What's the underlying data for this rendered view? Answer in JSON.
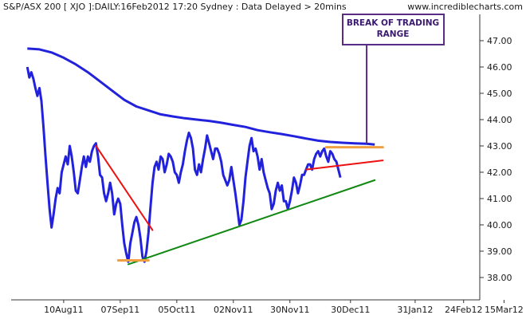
{
  "header": {
    "title": "S&P/ASX 200 [ XJO ]:DAILY:16Feb2012 17:20 Sydney : Data Delayed > 20mins",
    "url": "www.incrediblecharts.com"
  },
  "colors": {
    "price": "#2222dd",
    "ma": "#2222dd",
    "downtrend": "#ee1111",
    "uptrend": "#118811",
    "support": "#f0a040",
    "resistance_upper": "#f0a040",
    "resistance_line": "#ee1111",
    "note": "#5a2c86",
    "background": "#ffffff",
    "axis": "#333333"
  },
  "chart_data": {
    "type": "line",
    "title": "S&P/ASX 200 [ XJO ]:DAILY:16Feb2012 17:20 Sydney : Data Delayed > 20mins",
    "xlabel": "",
    "ylabel": "",
    "x_tick_labels": [
      "10Aug11",
      "07Sep11",
      "05Oct11",
      "02Nov11",
      "30Nov11",
      "30Dec11",
      "31Jan12",
      "24Feb12",
      "15Mar12"
    ],
    "y_tick_labels": [
      "38.00",
      "39.00",
      "40.00",
      "41.00",
      "42.00",
      "43.00",
      "44.00",
      "45.00",
      "46.00",
      "47.00"
    ],
    "ylim": [
      37.15,
      48.0
    ],
    "xlim": [
      0,
      232
    ],
    "grid": false,
    "y_axis": "right",
    "x_ticks": [
      {
        "label": "10Aug11",
        "x": 26
      },
      {
        "label": "07Sep11",
        "x": 54
      },
      {
        "label": "05Oct11",
        "x": 82
      },
      {
        "label": "02Nov11",
        "x": 110
      },
      {
        "label": "30Nov11",
        "x": 138
      },
      {
        "label": "30Dec11",
        "x": 168
      },
      {
        "label": "31Jan12",
        "x": 200
      },
      {
        "label": "24Feb12",
        "x": 224
      },
      {
        "label": "15Mar12",
        "x": 244
      }
    ],
    "y_ticks": [
      38,
      39,
      40,
      41,
      42,
      43,
      44,
      45,
      46,
      47
    ],
    "series": [
      {
        "kind": "price",
        "points": [
          [
            8,
            46.0
          ],
          [
            9,
            45.6
          ],
          [
            10,
            45.8
          ],
          [
            11,
            45.55
          ],
          [
            12,
            45.2
          ],
          [
            13,
            44.9
          ],
          [
            14,
            45.2
          ],
          [
            15,
            44.7
          ],
          [
            16,
            43.7
          ],
          [
            17,
            42.6
          ],
          [
            18,
            41.6
          ],
          [
            19,
            40.6
          ],
          [
            20,
            39.9
          ],
          [
            21,
            40.4
          ],
          [
            22,
            41.0
          ],
          [
            23,
            41.4
          ],
          [
            24,
            41.2
          ],
          [
            25,
            42.0
          ],
          [
            26,
            42.3
          ],
          [
            27,
            42.6
          ],
          [
            28,
            42.3
          ],
          [
            29,
            43.0
          ],
          [
            30,
            42.6
          ],
          [
            31,
            42.0
          ],
          [
            32,
            41.3
          ],
          [
            33,
            41.2
          ],
          [
            34,
            41.7
          ],
          [
            35,
            42.2
          ],
          [
            36,
            42.6
          ],
          [
            37,
            42.2
          ],
          [
            38,
            42.6
          ],
          [
            39,
            42.4
          ],
          [
            40,
            42.8
          ],
          [
            41,
            43.0
          ],
          [
            42,
            43.1
          ],
          [
            43,
            42.6
          ],
          [
            44,
            41.9
          ],
          [
            45,
            41.8
          ],
          [
            46,
            41.2
          ],
          [
            47,
            40.9
          ],
          [
            48,
            41.2
          ],
          [
            49,
            41.6
          ],
          [
            50,
            41.2
          ],
          [
            51,
            40.4
          ],
          [
            52,
            40.8
          ],
          [
            53,
            41.0
          ],
          [
            54,
            40.8
          ],
          [
            55,
            40.0
          ],
          [
            56,
            39.3
          ],
          [
            57,
            38.9
          ],
          [
            58,
            38.6
          ],
          [
            59,
            39.3
          ],
          [
            60,
            39.7
          ],
          [
            61,
            40.1
          ],
          [
            62,
            40.3
          ],
          [
            63,
            40.0
          ],
          [
            64,
            39.5
          ],
          [
            65,
            38.8
          ],
          [
            66,
            38.6
          ],
          [
            67,
            39.0
          ],
          [
            68,
            39.7
          ],
          [
            69,
            40.7
          ],
          [
            70,
            41.6
          ],
          [
            71,
            42.2
          ],
          [
            72,
            42.4
          ],
          [
            73,
            42.1
          ],
          [
            74,
            42.6
          ],
          [
            75,
            42.5
          ],
          [
            76,
            42.0
          ],
          [
            77,
            42.3
          ],
          [
            78,
            42.7
          ],
          [
            79,
            42.6
          ],
          [
            80,
            42.4
          ],
          [
            81,
            42.0
          ],
          [
            82,
            41.9
          ],
          [
            83,
            41.6
          ],
          [
            84,
            42.0
          ],
          [
            85,
            42.3
          ],
          [
            86,
            42.8
          ],
          [
            87,
            43.2
          ],
          [
            88,
            43.5
          ],
          [
            89,
            43.3
          ],
          [
            90,
            42.9
          ],
          [
            91,
            42.1
          ],
          [
            92,
            41.9
          ],
          [
            93,
            42.3
          ],
          [
            94,
            42.0
          ],
          [
            95,
            42.5
          ],
          [
            96,
            42.9
          ],
          [
            97,
            43.4
          ],
          [
            98,
            43.1
          ],
          [
            99,
            42.8
          ],
          [
            100,
            42.5
          ],
          [
            101,
            42.9
          ],
          [
            102,
            42.9
          ],
          [
            103,
            42.7
          ],
          [
            104,
            42.4
          ],
          [
            105,
            41.9
          ],
          [
            106,
            41.7
          ],
          [
            107,
            41.5
          ],
          [
            108,
            41.7
          ],
          [
            109,
            42.2
          ],
          [
            110,
            41.7
          ],
          [
            111,
            41.2
          ],
          [
            112,
            40.6
          ],
          [
            113,
            40.0
          ],
          [
            114,
            40.2
          ],
          [
            115,
            40.9
          ],
          [
            116,
            41.8
          ],
          [
            117,
            42.4
          ],
          [
            118,
            43.0
          ],
          [
            119,
            43.3
          ],
          [
            120,
            42.8
          ],
          [
            121,
            42.9
          ],
          [
            122,
            42.6
          ],
          [
            123,
            42.1
          ],
          [
            124,
            42.5
          ],
          [
            125,
            42.0
          ],
          [
            126,
            41.7
          ],
          [
            127,
            41.4
          ],
          [
            128,
            41.2
          ],
          [
            129,
            40.6
          ],
          [
            130,
            40.8
          ],
          [
            131,
            41.3
          ],
          [
            132,
            41.6
          ],
          [
            133,
            41.3
          ],
          [
            134,
            41.5
          ],
          [
            135,
            40.9
          ],
          [
            136,
            40.9
          ],
          [
            137,
            40.6
          ],
          [
            138,
            40.9
          ],
          [
            139,
            41.3
          ],
          [
            140,
            41.8
          ],
          [
            141,
            41.6
          ],
          [
            142,
            41.2
          ],
          [
            143,
            41.5
          ],
          [
            144,
            41.9
          ],
          [
            145,
            41.9
          ],
          [
            146,
            42.1
          ],
          [
            147,
            42.3
          ],
          [
            148,
            42.3
          ],
          [
            149,
            42.1
          ],
          [
            150,
            42.5
          ],
          [
            151,
            42.7
          ],
          [
            152,
            42.8
          ],
          [
            153,
            42.6
          ],
          [
            154,
            42.8
          ],
          [
            155,
            42.9
          ],
          [
            156,
            42.6
          ],
          [
            157,
            42.4
          ],
          [
            158,
            42.8
          ],
          [
            159,
            42.7
          ],
          [
            160,
            42.5
          ],
          [
            161,
            42.4
          ],
          [
            162,
            42.1
          ],
          [
            163,
            41.8
          ]
        ]
      },
      {
        "kind": "moving-average",
        "points": [
          [
            8,
            46.7
          ],
          [
            14,
            46.67
          ],
          [
            20,
            46.55
          ],
          [
            26,
            46.35
          ],
          [
            32,
            46.1
          ],
          [
            38,
            45.8
          ],
          [
            44,
            45.45
          ],
          [
            50,
            45.1
          ],
          [
            56,
            44.75
          ],
          [
            62,
            44.5
          ],
          [
            68,
            44.35
          ],
          [
            74,
            44.2
          ],
          [
            80,
            44.12
          ],
          [
            86,
            44.05
          ],
          [
            92,
            44.0
          ],
          [
            98,
            43.95
          ],
          [
            104,
            43.88
          ],
          [
            110,
            43.8
          ],
          [
            116,
            43.72
          ],
          [
            122,
            43.6
          ],
          [
            128,
            43.52
          ],
          [
            134,
            43.45
          ],
          [
            140,
            43.37
          ],
          [
            146,
            43.28
          ],
          [
            152,
            43.2
          ],
          [
            158,
            43.15
          ],
          [
            164,
            43.12
          ],
          [
            170,
            43.1
          ],
          [
            176,
            43.08
          ],
          [
            180,
            43.05
          ]
        ]
      }
    ],
    "annotations": [
      {
        "kind": "downtrend-line",
        "color": "red",
        "from": [
          42,
          43.0
        ],
        "to": [
          70,
          39.8
        ]
      },
      {
        "kind": "uptrend-line",
        "color": "green",
        "from": [
          58,
          38.5
        ],
        "to": [
          180,
          41.7
        ]
      },
      {
        "kind": "support-level",
        "color": "orange",
        "from": [
          53,
          38.65
        ],
        "to": [
          68,
          38.65
        ]
      },
      {
        "kind": "resistance-level",
        "color": "orange",
        "from": [
          156,
          42.95
        ],
        "to": [
          184,
          42.95
        ]
      },
      {
        "kind": "channel-top-line",
        "color": "red",
        "from": [
          146,
          42.1
        ],
        "to": [
          184,
          42.45
        ]
      },
      {
        "kind": "break-marker",
        "color": "purple",
        "from": [
          176,
          47.2
        ],
        "to": [
          176,
          43.1
        ]
      }
    ],
    "note_box": {
      "line1": "BREAK OF TRADING",
      "line2": "RANGE"
    }
  }
}
